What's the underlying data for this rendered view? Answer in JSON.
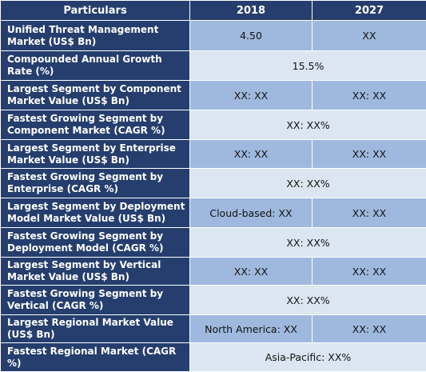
{
  "header": {
    "col1": "Particulars",
    "col2": "2018",
    "col3": "2027"
  },
  "rows": [
    {
      "label": "Unified Threat Management Market (US$ Bn)",
      "v2018": "4.50",
      "v2027": "XX"
    },
    {
      "label": "Compounded Annual Growth Rate (%)",
      "merged": "15.5%"
    },
    {
      "label": "Largest Segment by Component Market Value (US$ Bn)",
      "v2018": "XX: XX",
      "v2027": "XX: XX"
    },
    {
      "label": "Fastest Growing Segment by Component Market (CAGR %)",
      "merged": "XX: XX%"
    },
    {
      "label": "Largest Segment by Enterprise Market Value (US$ Bn)",
      "v2018": "XX: XX",
      "v2027": "XX: XX"
    },
    {
      "label": "Fastest Growing Segment by Enterprise (CAGR %)",
      "merged": "XX: XX%"
    },
    {
      "label": "Largest Segment by Deployment Model Market Value (US$ Bn)",
      "v2018": "Cloud-based: XX",
      "v2027": "XX: XX"
    },
    {
      "label": "Fastest Growing Segment by Deployment Model (CAGR %)",
      "merged": "XX: XX%"
    },
    {
      "label": "Largest Segment by Vertical Market Value (US$ Bn)",
      "v2018": "XX: XX",
      "v2027": "XX: XX"
    },
    {
      "label": "Fastest Growing Segment by Vertical (CAGR %)",
      "merged": "XX: XX%"
    },
    {
      "label": "Largest Regional Market Value (US$ Bn)",
      "v2018": "North America: XX",
      "v2027": "XX: XX"
    },
    {
      "label": "Fastest Regional Market (CAGR %)",
      "merged": "Asia-Pacific: XX%"
    }
  ]
}
